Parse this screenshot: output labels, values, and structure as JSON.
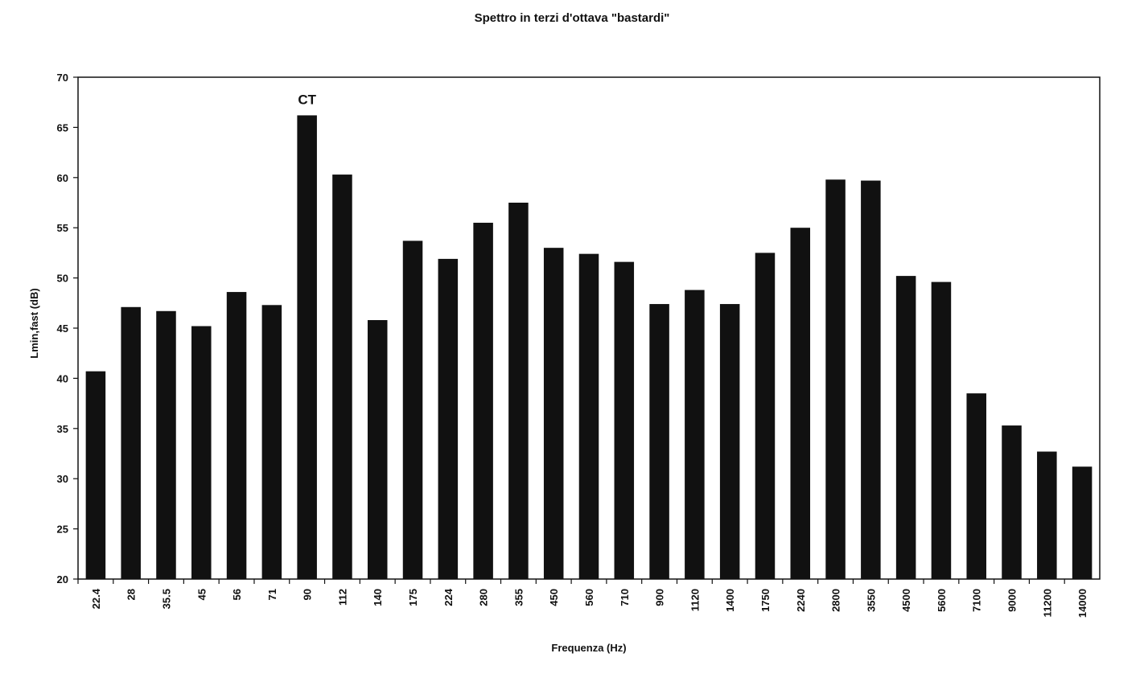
{
  "chart_data": {
    "type": "bar",
    "title": "Spettro in terzi d'ottava \"bastardi\"",
    "xlabel": "Frequenza (Hz)",
    "ylabel": "Lmin,fast (dB)",
    "ylim": [
      20,
      70
    ],
    "yticks": [
      20,
      25,
      30,
      35,
      40,
      45,
      50,
      55,
      60,
      65,
      70
    ],
    "grid": false,
    "legend": "none",
    "bar_color": "#111111",
    "categories": [
      "22.4",
      "28",
      "35.5",
      "45",
      "56",
      "71",
      "90",
      "112",
      "140",
      "175",
      "224",
      "280",
      "355",
      "450",
      "560",
      "710",
      "900",
      "1120",
      "1400",
      "1750",
      "2240",
      "2800",
      "3550",
      "4500",
      "5600",
      "7100",
      "9000",
      "11200",
      "14000"
    ],
    "values": [
      40.7,
      47.1,
      46.7,
      45.2,
      48.6,
      47.3,
      66.2,
      60.3,
      45.8,
      53.7,
      51.9,
      55.5,
      57.5,
      53.0,
      52.4,
      51.6,
      47.4,
      48.8,
      47.4,
      52.5,
      55.0,
      59.8,
      59.7,
      50.2,
      49.6,
      38.5,
      35.3,
      32.7,
      31.2
    ],
    "annotations": [
      {
        "category": "90",
        "text": "CT"
      }
    ]
  }
}
